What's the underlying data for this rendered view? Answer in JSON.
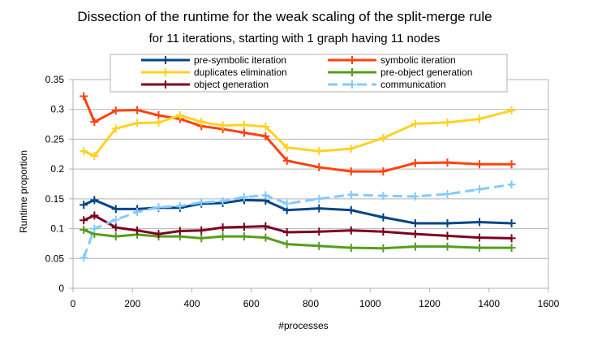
{
  "chart_data": {
    "type": "line",
    "title": "Dissection of the runtime for the weak scaling of the split-merge rule",
    "subtitle": "for 11 iterations, starting with 1 graph having 11 nodes",
    "xlabel": "#processes",
    "ylabel": "Runtime proportion",
    "xlim": [
      0,
      1600
    ],
    "ylim": [
      0,
      0.35
    ],
    "xticks": [
      0,
      200,
      400,
      600,
      800,
      1000,
      1200,
      1400,
      1600
    ],
    "yticks": [
      0,
      0.05,
      0.1,
      0.15,
      0.2,
      0.25,
      0.3,
      0.35
    ],
    "grid": "horizontal",
    "legend_position": "top",
    "x": [
      36,
      72,
      144,
      216,
      288,
      360,
      432,
      504,
      576,
      648,
      720,
      828,
      936,
      1044,
      1152,
      1260,
      1368,
      1476
    ],
    "series": [
      {
        "name": "pre-symbolic iteration",
        "color": "#004586",
        "dashed": false,
        "markers": true,
        "values": [
          0.14,
          0.148,
          0.133,
          0.133,
          0.135,
          0.135,
          0.142,
          0.143,
          0.148,
          0.147,
          0.131,
          0.134,
          0.131,
          0.119,
          0.109,
          0.109,
          0.111,
          0.109
        ]
      },
      {
        "name": "symbolic iteration",
        "color": "#ff420e",
        "dashed": false,
        "markers": true,
        "values": [
          0.322,
          0.279,
          0.298,
          0.299,
          0.29,
          0.284,
          0.272,
          0.267,
          0.261,
          0.255,
          0.214,
          0.203,
          0.196,
          0.196,
          0.21,
          0.211,
          0.208,
          0.208
        ]
      },
      {
        "name": "duplicates elimination",
        "color": "#ffd320",
        "dashed": false,
        "markers": true,
        "values": [
          0.23,
          0.222,
          0.268,
          0.277,
          0.278,
          0.29,
          0.279,
          0.273,
          0.274,
          0.271,
          0.236,
          0.23,
          0.234,
          0.252,
          0.276,
          0.278,
          0.284,
          0.298
        ]
      },
      {
        "name": "pre-object generation",
        "color": "#579d1c",
        "dashed": false,
        "markers": true,
        "values": [
          0.098,
          0.091,
          0.087,
          0.09,
          0.087,
          0.087,
          0.084,
          0.087,
          0.087,
          0.085,
          0.074,
          0.071,
          0.068,
          0.067,
          0.07,
          0.07,
          0.068,
          0.068
        ]
      },
      {
        "name": "object generation",
        "color": "#7e0021",
        "dashed": false,
        "markers": true,
        "values": [
          0.114,
          0.122,
          0.102,
          0.097,
          0.091,
          0.096,
          0.097,
          0.102,
          0.103,
          0.104,
          0.094,
          0.095,
          0.097,
          0.095,
          0.091,
          0.088,
          0.085,
          0.084
        ]
      },
      {
        "name": "communication",
        "color": "#83caff",
        "dashed": true,
        "markers": false,
        "values": [
          0.051,
          0.1,
          0.115,
          0.128,
          0.136,
          0.138,
          0.144,
          0.146,
          0.153,
          0.156,
          0.142,
          0.15,
          0.157,
          0.155,
          0.154,
          0.158,
          0.166,
          0.174
        ]
      }
    ]
  }
}
